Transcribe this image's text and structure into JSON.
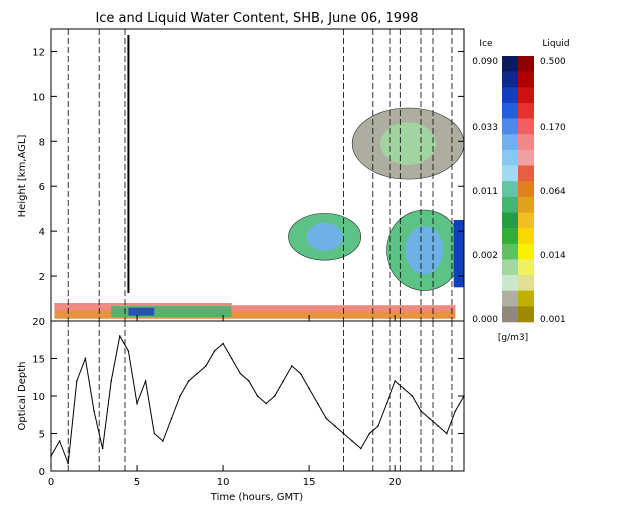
{
  "title": "Ice and Liquid Water Content, SHB, June 06, 1998",
  "chart_data": [
    {
      "type": "heatmap",
      "title": "Ice and Liquid Water Content, SHB, June 06, 1998",
      "xlabel": "",
      "ylabel": "Height [km,AGL]",
      "xlim": [
        0,
        24
      ],
      "ylim": [
        0,
        13
      ],
      "x_ticks": [
        "0",
        "5",
        "10",
        "15",
        "20"
      ],
      "y_ticks": [
        "2",
        "4",
        "6",
        "8",
        "10",
        "12"
      ],
      "dashed_lines_hours": [
        1.0,
        2.8,
        4.3,
        17.0,
        18.7,
        19.7,
        20.3,
        21.5,
        22.2,
        23.3
      ],
      "solid_line_hours": 4.5,
      "regions": [
        {
          "name": "low liquid cloud",
          "x_start": 0.2,
          "x_end": 10.5,
          "y_bottom": 0.1,
          "y_top": 0.8,
          "phase": "liquid"
        },
        {
          "name": "low liquid layer",
          "x_start": 10.5,
          "x_end": 23.5,
          "y_bottom": 0.1,
          "y_top": 0.7,
          "phase": "liquid"
        },
        {
          "name": "mid ice cloud",
          "x_start": 13.8,
          "x_end": 18.0,
          "y_bottom": 2.5,
          "y_top": 5.0,
          "phase": "ice"
        },
        {
          "name": "mid ice cloud 2",
          "x_start": 19.5,
          "x_end": 23.9,
          "y_bottom": 1.0,
          "y_top": 5.3,
          "phase": "ice"
        },
        {
          "name": "upper ice cloud",
          "x_start": 17.5,
          "x_end": 24.0,
          "y_bottom": 6.0,
          "y_top": 9.8,
          "phase": "ice"
        }
      ]
    },
    {
      "type": "line",
      "title": "",
      "xlabel": "Time (hours, GMT)",
      "ylabel": "Optical Depth",
      "xlim": [
        0,
        24
      ],
      "ylim": [
        0,
        20
      ],
      "x_ticks": [
        "0",
        "5",
        "10",
        "15",
        "20"
      ],
      "y_ticks": [
        "0",
        "5",
        "10",
        "15",
        "20"
      ],
      "x": [
        0.0,
        0.5,
        1.0,
        1.5,
        2.0,
        2.5,
        3.0,
        3.5,
        4.0,
        4.5,
        5.0,
        5.5,
        6.0,
        6.5,
        7.0,
        7.5,
        8.0,
        8.5,
        9.0,
        9.5,
        10.0,
        10.5,
        11.0,
        11.5,
        12.0,
        12.5,
        13.0,
        13.5,
        14.0,
        14.5,
        15.0,
        15.5,
        16.0,
        16.5,
        17.0,
        17.5,
        18.0,
        18.5,
        19.0,
        19.5,
        20.0,
        20.5,
        21.0,
        21.5,
        22.0,
        22.5,
        23.0,
        23.5,
        24.0
      ],
      "y": [
        2,
        4,
        1,
        12,
        15,
        8,
        3,
        12,
        18,
        16,
        9,
        12,
        5,
        4,
        7,
        10,
        12,
        13,
        14,
        16,
        17,
        15,
        13,
        12,
        10,
        9,
        10,
        12,
        14,
        13,
        11,
        9,
        7,
        6,
        5,
        4,
        3,
        5,
        6,
        9,
        12,
        11,
        10,
        8,
        7,
        6,
        5,
        8,
        10
      ]
    }
  ],
  "colorbar": {
    "ice_header": "Ice",
    "liquid_header": "Liquid",
    "ice_labels": [
      "0.090",
      "0.033",
      "0.011",
      "0.002",
      "0.000"
    ],
    "liquid_labels": [
      "0.500",
      "0.170",
      "0.064",
      "0.014",
      "0.001"
    ],
    "units": "[g/m3]",
    "ice_colors": [
      "#0a1a5c",
      "#0c2a8c",
      "#1040c0",
      "#2060e0",
      "#4a8ae8",
      "#70b0f0",
      "#88c8f0",
      "#a0dcf0",
      "#60c8a0",
      "#40b870",
      "#20a040",
      "#30b030",
      "#60c060",
      "#a0d8a0",
      "#c8e8c8",
      "#b0b0a0",
      "#908878"
    ],
    "liquid_colors": [
      "#8c0000",
      "#b00000",
      "#d01010",
      "#e83030",
      "#f06060",
      "#f08888",
      "#f0a0a0",
      "#e06040",
      "#e08020",
      "#e0a020",
      "#f0c020",
      "#f8d800",
      "#f8f000",
      "#f0f060",
      "#e0e090",
      "#c0b000",
      "#a08800"
    ]
  },
  "heatmap_colors": {
    "ice_dark": "#1040c0",
    "ice_mid": "#70b0f0",
    "green": "#40b870",
    "light_green": "#a0d8a0",
    "gray": "#a0a090",
    "liquid_orange": "#e08020",
    "liquid_pink": "#f08888",
    "liquid_red": "#e83030"
  }
}
